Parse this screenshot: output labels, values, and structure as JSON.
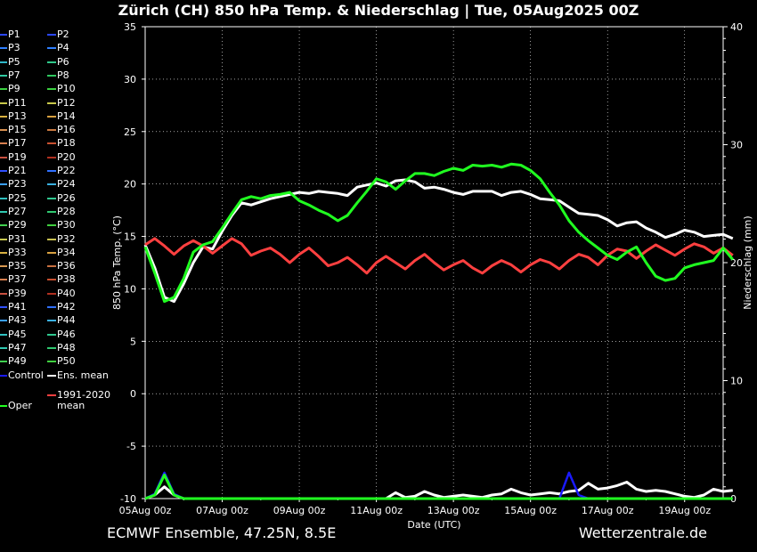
{
  "title": "Zürich  (CH)  850 hPa Temp. & Niederschlag | Tue, 05Aug2025 00Z",
  "footer_left": "ECMWF Ensemble, 47.25N, 8.5E",
  "footer_right": "Wetterzentrale.de",
  "legend": {
    "members": [
      {
        "label": "P1",
        "color": "#2a47ff"
      },
      {
        "label": "P2",
        "color": "#2a47ff"
      },
      {
        "label": "P3",
        "color": "#2f7fff"
      },
      {
        "label": "P4",
        "color": "#2f7fff"
      },
      {
        "label": "P5",
        "color": "#2fb7c8"
      },
      {
        "label": "P6",
        "color": "#2fc88a"
      },
      {
        "label": "P7",
        "color": "#2fc8a0"
      },
      {
        "label": "P8",
        "color": "#2fc860"
      },
      {
        "label": "P9",
        "color": "#3ad040"
      },
      {
        "label": "P10",
        "color": "#3ad040"
      },
      {
        "label": "P11",
        "color": "#c8c84a"
      },
      {
        "label": "P12",
        "color": "#c8c84a"
      },
      {
        "label": "P13",
        "color": "#d8b040"
      },
      {
        "label": "P14",
        "color": "#d8a040"
      },
      {
        "label": "P15",
        "color": "#d89050"
      },
      {
        "label": "P16",
        "color": "#c87840"
      },
      {
        "label": "P17",
        "color": "#d88050"
      },
      {
        "label": "P18",
        "color": "#c85030"
      },
      {
        "label": "P19",
        "color": "#c85040"
      },
      {
        "label": "P20",
        "color": "#b03020"
      },
      {
        "label": "P21",
        "color": "#3050ff"
      },
      {
        "label": "P22",
        "color": "#3070ff"
      },
      {
        "label": "P23",
        "color": "#3aa0ff"
      },
      {
        "label": "P24",
        "color": "#3ab0e0"
      },
      {
        "label": "P25",
        "color": "#30c0c0"
      },
      {
        "label": "P26",
        "color": "#30c890"
      },
      {
        "label": "P27",
        "color": "#30c8b0"
      },
      {
        "label": "P28",
        "color": "#30c870"
      },
      {
        "label": "P29",
        "color": "#40d050"
      },
      {
        "label": "P30",
        "color": "#40d040"
      },
      {
        "label": "P31",
        "color": "#c8c850"
      },
      {
        "label": "P32",
        "color": "#c8c050"
      },
      {
        "label": "P33",
        "color": "#d8b040"
      },
      {
        "label": "P34",
        "color": "#d8a040"
      },
      {
        "label": "P35",
        "color": "#d89850"
      },
      {
        "label": "P36",
        "color": "#c87040"
      },
      {
        "label": "P37",
        "color": "#d88050"
      },
      {
        "label": "P38",
        "color": "#c85030"
      },
      {
        "label": "P39",
        "color": "#c85040"
      },
      {
        "label": "P40",
        "color": "#b03020"
      },
      {
        "label": "P41",
        "color": "#3050ff"
      },
      {
        "label": "P42",
        "color": "#3070ff"
      },
      {
        "label": "P43",
        "color": "#3aa0ff"
      },
      {
        "label": "P44",
        "color": "#3ab0e0"
      },
      {
        "label": "P45",
        "color": "#30c0c0"
      },
      {
        "label": "P46",
        "color": "#30c890"
      },
      {
        "label": "P47",
        "color": "#30c8b0"
      },
      {
        "label": "P48",
        "color": "#30c870"
      },
      {
        "label": "P49",
        "color": "#40d050"
      },
      {
        "label": "P50",
        "color": "#40d040"
      }
    ],
    "control": {
      "label": "Control",
      "color": "#1a1aff"
    },
    "ens_mean": {
      "label": "Ens. mean",
      "color": "#ffffff"
    },
    "oper": {
      "label": "Oper",
      "color": "#20ff20"
    },
    "clim": {
      "label": "1991-2020\nmean",
      "color": "#ff4040"
    }
  },
  "chart_data": {
    "type": "line",
    "xlabel": "Date (UTC)",
    "ylabel_left": "850 hPa Temp. (°C)",
    "ylabel_right": "Niederschlag (mm)",
    "xticks": [
      "05Aug 00z",
      "07Aug 00z",
      "09Aug 00z",
      "11Aug 00z",
      "13Aug 00z",
      "15Aug 00z",
      "17Aug 00z",
      "19Aug 00z"
    ],
    "xlim_days": [
      0,
      15
    ],
    "ylim_left": [
      -10,
      35
    ],
    "ylim_right": [
      0,
      40
    ],
    "yticks_left": [
      -10,
      -5,
      0,
      5,
      10,
      15,
      20,
      25,
      30,
      35
    ],
    "yticks_right": [
      0,
      10,
      20,
      30,
      40
    ],
    "step_hours": 6,
    "series": [
      {
        "name": "Ens. mean",
        "color": "#ffffff",
        "axis": "left",
        "values": [
          14.2,
          12.0,
          9.2,
          8.8,
          10.5,
          12.5,
          14.0,
          13.8,
          15.5,
          17.0,
          18.2,
          18.0,
          18.3,
          18.6,
          18.8,
          19.0,
          19.2,
          19.1,
          19.3,
          19.2,
          19.1,
          18.9,
          19.7,
          19.9,
          20.1,
          19.8,
          20.3,
          20.4,
          20.2,
          19.6,
          19.7,
          19.5,
          19.2,
          19.0,
          19.3,
          19.3,
          19.3,
          18.9,
          19.2,
          19.3,
          19.0,
          18.6,
          18.5,
          18.4,
          17.8,
          17.2,
          17.1,
          17.0,
          16.6,
          16.0,
          16.3,
          16.4,
          15.8,
          15.4,
          14.9,
          15.2,
          15.6,
          15.4,
          15.0,
          15.1,
          15.2,
          14.8
        ]
      },
      {
        "name": "1991-2020\nmean",
        "color": "#ff4040",
        "axis": "left",
        "values": [
          14.2,
          14.8,
          14.1,
          13.3,
          14.1,
          14.6,
          14.1,
          13.4,
          14.1,
          14.8,
          14.3,
          13.2,
          13.6,
          13.9,
          13.3,
          12.5,
          13.3,
          13.9,
          13.1,
          12.2,
          12.5,
          13.0,
          12.3,
          11.5,
          12.5,
          13.1,
          12.5,
          11.9,
          12.7,
          13.3,
          12.5,
          11.8,
          12.3,
          12.7,
          12.0,
          11.5,
          12.2,
          12.7,
          12.3,
          11.6,
          12.3,
          12.8,
          12.5,
          11.9,
          12.7,
          13.3,
          13.0,
          12.3,
          13.2,
          13.8,
          13.6,
          12.9,
          13.6,
          14.2,
          13.7,
          13.2,
          13.8,
          14.3,
          14.0,
          13.4,
          13.9,
          13.2
        ]
      },
      {
        "name": "Oper",
        "color": "#20ff20",
        "axis": "left",
        "values": [
          14.0,
          11.5,
          8.8,
          9.2,
          11.0,
          13.5,
          14.2,
          14.5,
          15.8,
          17.2,
          18.5,
          18.8,
          18.6,
          18.9,
          19.0,
          19.2,
          18.4,
          18.0,
          17.5,
          17.1,
          16.5,
          17.0,
          18.2,
          19.3,
          20.5,
          20.2,
          19.5,
          20.3,
          21.0,
          21.0,
          20.8,
          21.2,
          21.5,
          21.3,
          21.8,
          21.7,
          21.8,
          21.6,
          21.9,
          21.8,
          21.3,
          20.5,
          19.2,
          18.0,
          16.5,
          15.4,
          14.6,
          13.9,
          13.2,
          12.8,
          13.5,
          14.0,
          12.5,
          11.2,
          10.8,
          11.0,
          12.0,
          12.3,
          12.5,
          12.7,
          13.9,
          12.8
        ]
      },
      {
        "name": "Ens. mean",
        "color": "#ffffff",
        "axis": "right",
        "values": [
          0,
          0.3,
          1.0,
          0.3,
          0,
          0,
          0,
          0,
          0,
          0,
          0,
          0,
          0,
          0,
          0,
          0,
          0,
          0,
          0,
          0,
          0,
          0,
          0,
          0,
          0,
          0,
          0.5,
          0.1,
          0.2,
          0.6,
          0.3,
          0.1,
          0.2,
          0.3,
          0.2,
          0.1,
          0.3,
          0.4,
          0.8,
          0.5,
          0.3,
          0.4,
          0.5,
          0.4,
          0.6,
          0.7,
          1.3,
          0.8,
          0.9,
          1.1,
          1.4,
          0.8,
          0.6,
          0.7,
          0.6,
          0.4,
          0.2,
          0.1,
          0.3,
          0.8,
          0.6,
          0.7
        ]
      },
      {
        "name": "Control",
        "color": "#1a1aff",
        "axis": "right",
        "values": [
          0,
          0.4,
          2.2,
          0.4,
          0,
          0,
          0,
          0,
          0,
          0,
          0,
          0,
          0,
          0,
          0,
          0,
          0,
          0,
          0,
          0,
          0,
          0,
          0,
          0,
          0,
          0,
          0,
          0,
          0,
          0,
          0,
          0,
          0,
          0,
          0,
          0,
          0,
          0,
          0,
          0,
          0,
          0,
          0,
          0,
          2.2,
          0.3,
          0,
          0,
          0,
          0,
          0,
          0,
          0,
          0,
          0,
          0,
          0,
          0,
          0,
          0,
          0,
          0
        ]
      },
      {
        "name": "Oper",
        "color": "#20ff20",
        "axis": "right",
        "values": [
          0,
          0.3,
          2.0,
          0.3,
          0,
          0,
          0,
          0,
          0,
          0,
          0,
          0,
          0,
          0,
          0,
          0,
          0,
          0,
          0,
          0,
          0,
          0,
          0,
          0,
          0,
          0,
          0,
          0,
          0,
          0,
          0,
          0,
          0,
          0,
          0,
          0,
          0,
          0,
          0,
          0,
          0,
          0,
          0,
          0,
          0,
          0,
          0,
          0,
          0,
          0,
          0,
          0,
          0,
          0,
          0,
          0,
          0,
          0,
          0,
          0,
          0,
          0
        ]
      }
    ]
  }
}
